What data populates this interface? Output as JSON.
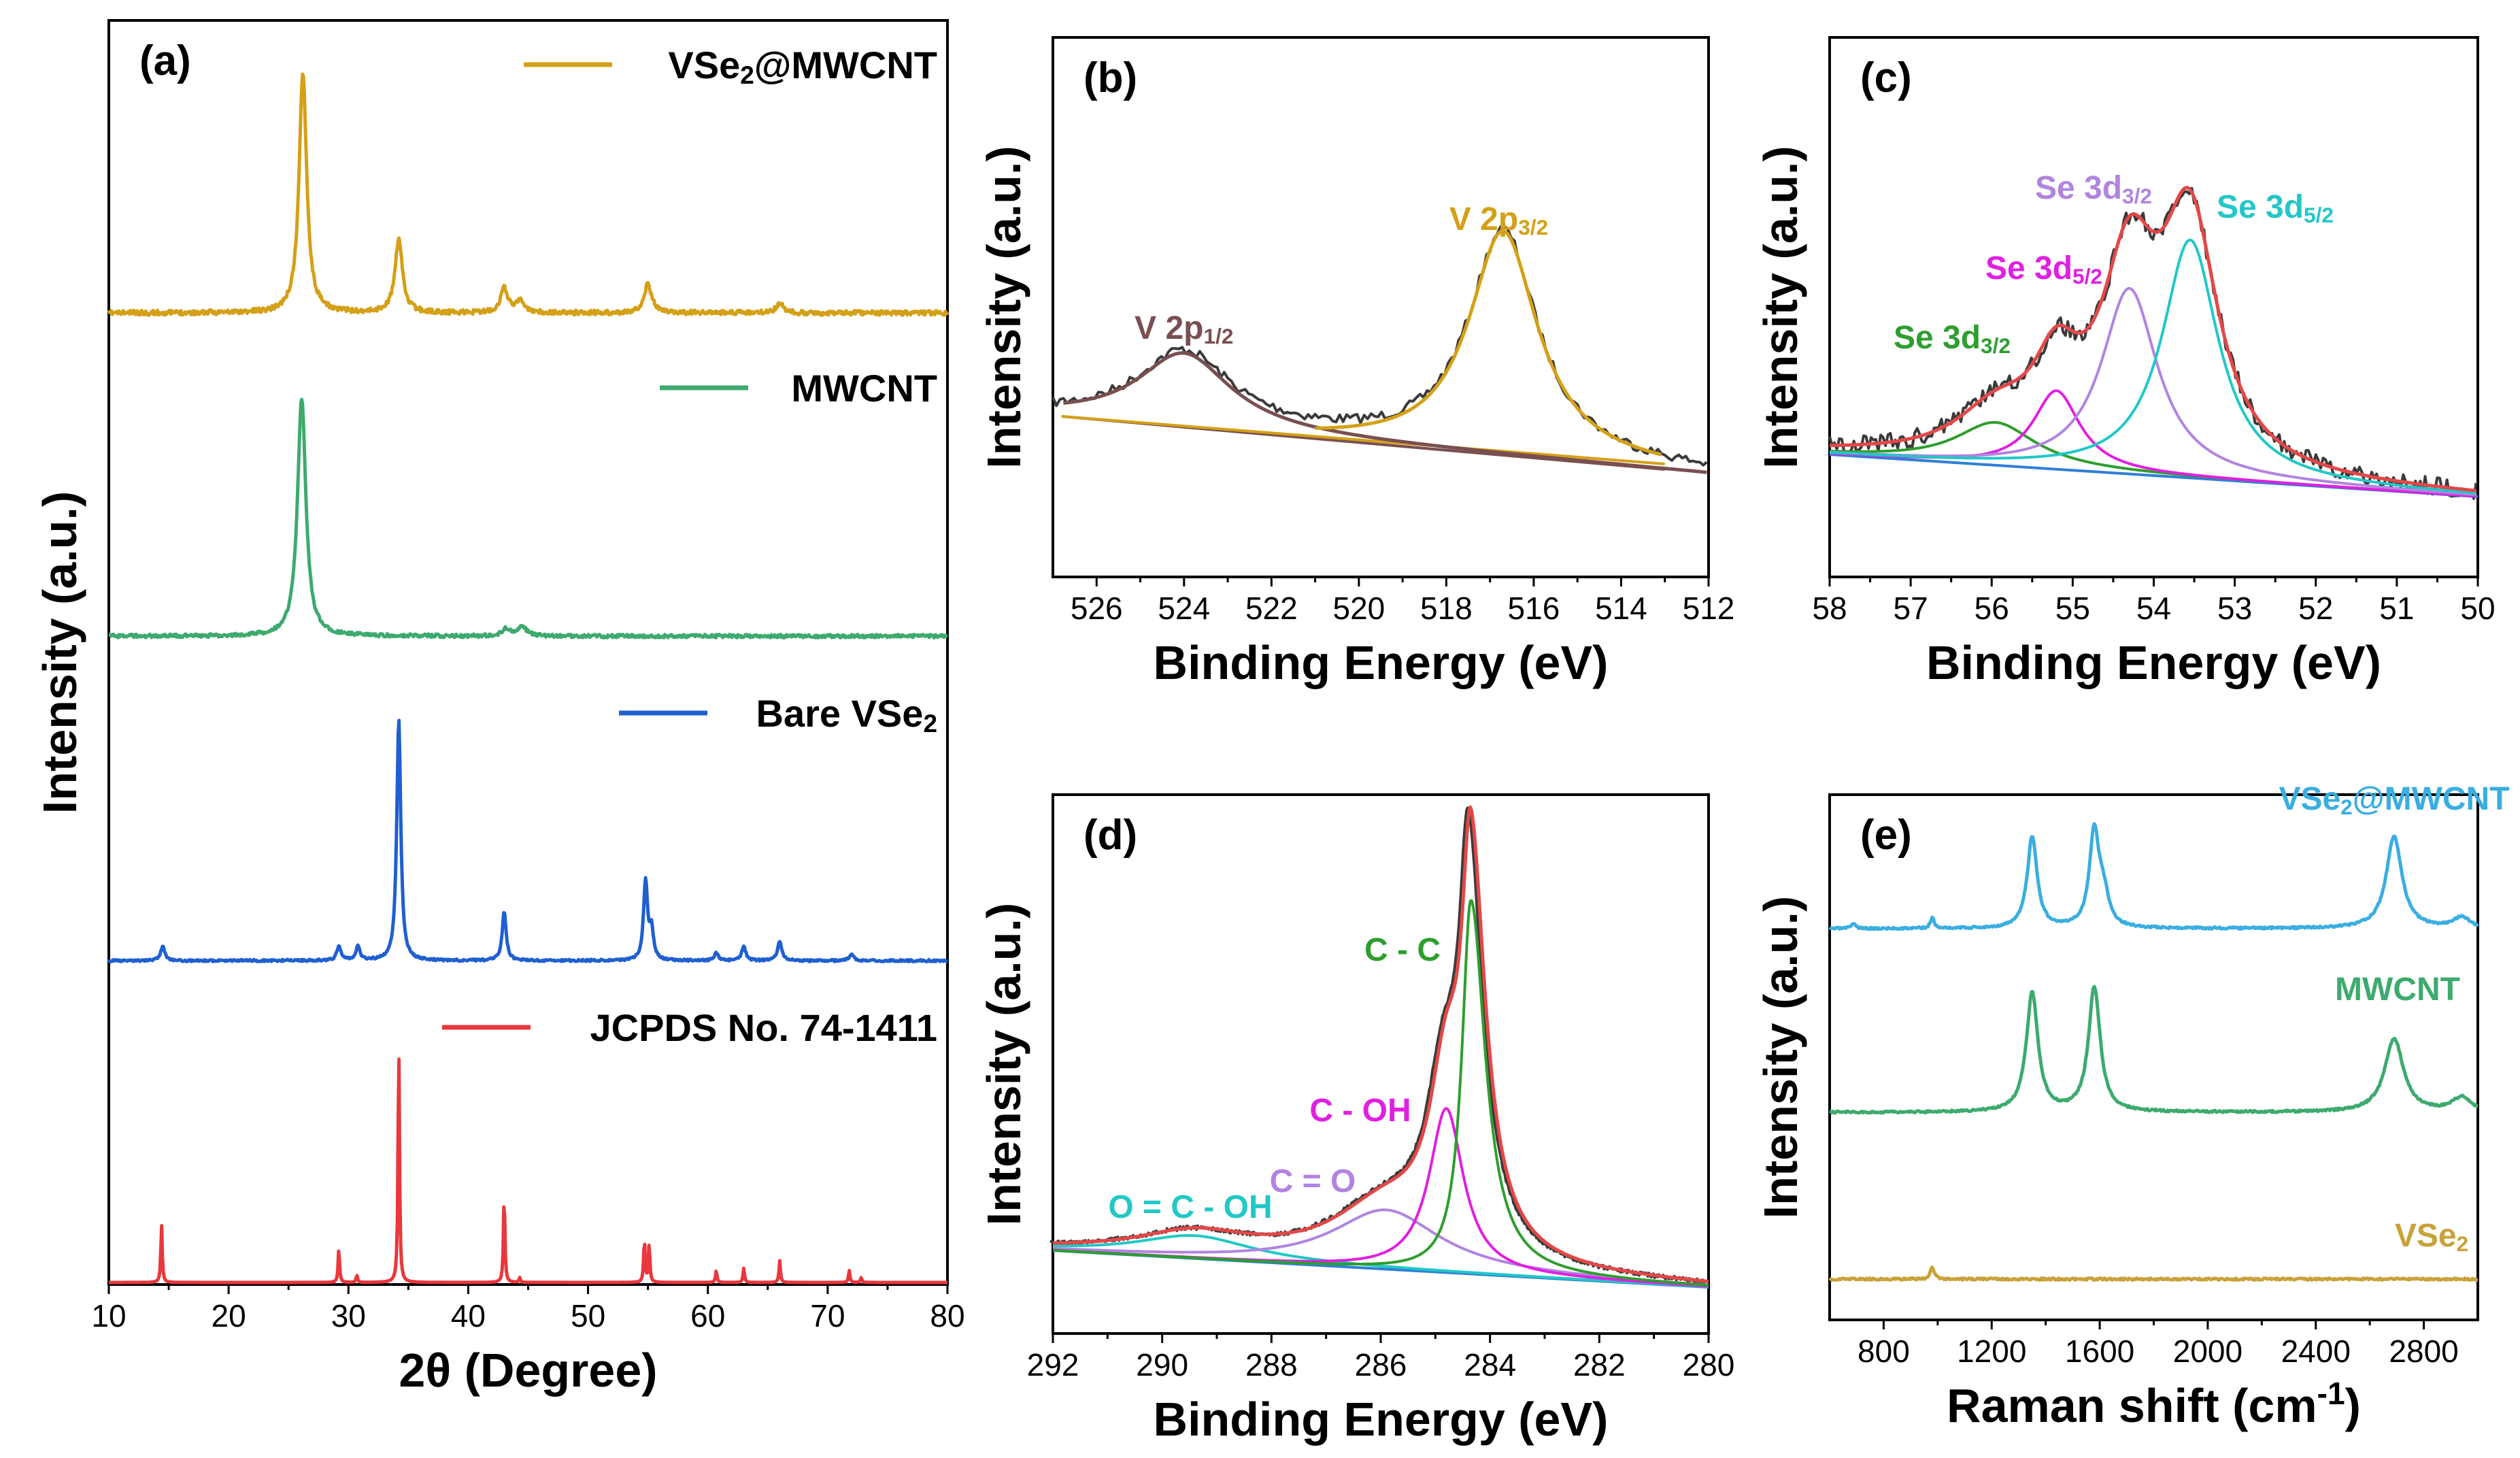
{
  "colors": {
    "gold": "#D4A017",
    "green": "#3DAA6E",
    "blue": "#1F5FD0",
    "red": "#E8383D",
    "gray": "#3a3a3a",
    "brown": "#7A4F4F",
    "violet": "#B184E0",
    "magenta": "#E020E0",
    "cyan": "#22C7C7",
    "dkgreen": "#2E9E2E",
    "fit": "#E34848",
    "base": "#2F7FD6",
    "sky": "#3AAEE0",
    "mwgreen": "#3DAA6E",
    "olive": "#C8A23A"
  },
  "chart_data": [
    {
      "id": "a",
      "type": "line",
      "panel_label": "(a)",
      "title": "",
      "xlabel": "2θ (Degree)",
      "ylabel": "Intensity (a.u.)",
      "xlim": [
        10,
        80
      ],
      "xticks": [
        "10",
        "20",
        "30",
        "40",
        "50",
        "60",
        "70",
        "80"
      ],
      "series": [
        {
          "name": "VSe",
          "sub": "2",
          "suffix": "@MWCNT",
          "color": "#D4A017",
          "peaks": [
            [
              26.2,
              100
            ],
            [
              34.2,
              30
            ],
            [
              43.0,
              10
            ],
            [
              55.0,
              12
            ],
            [
              44.3,
              5
            ],
            [
              66.0,
              4
            ]
          ]
        },
        {
          "name": "MWCNT",
          "sub": "",
          "suffix": "",
          "color": "#3DAA6E",
          "peaks": [
            [
              26.1,
              100
            ],
            [
              44.5,
              4
            ],
            [
              43.2,
              3
            ]
          ]
        },
        {
          "name": "Bare VSe",
          "sub": "2",
          "suffix": "",
          "color": "#1F5FD0",
          "peaks": [
            [
              14.5,
              6
            ],
            [
              29.2,
              6
            ],
            [
              30.8,
              6
            ],
            [
              34.2,
              100
            ],
            [
              43.0,
              20
            ],
            [
              54.8,
              33
            ],
            [
              55.3,
              12
            ],
            [
              63.0,
              6
            ],
            [
              66.0,
              8
            ],
            [
              72.0,
              3
            ],
            [
              60.7,
              3
            ]
          ]
        },
        {
          "name": "JCPDS No. 74-1411",
          "sub": "",
          "suffix": "",
          "color": "#E8383D",
          "peaks": [
            [
              14.4,
              24
            ],
            [
              29.2,
              14
            ],
            [
              30.7,
              3
            ],
            [
              34.2,
              100
            ],
            [
              43.0,
              37
            ],
            [
              54.7,
              18
            ],
            [
              55.1,
              16
            ],
            [
              60.7,
              5
            ],
            [
              63.0,
              6
            ],
            [
              66.0,
              9
            ],
            [
              71.8,
              5
            ],
            [
              72.8,
              2
            ],
            [
              44.3,
              2
            ]
          ]
        }
      ]
    },
    {
      "id": "b",
      "type": "line",
      "panel_label": "(b)",
      "xlabel": "Binding Energy (eV)",
      "ylabel": "Intensity (a.u.)",
      "xlim": [
        527,
        512
      ],
      "xticks": [
        "526",
        "524",
        "522",
        "520",
        "518",
        "516",
        "514",
        "512"
      ],
      "components": [
        {
          "name": "V 2p",
          "sub": "1/2",
          "center": 524.0,
          "height": 0.33,
          "color": "#7A4F4F"
        },
        {
          "name": "V 2p",
          "sub": "3/2",
          "center": 516.7,
          "height": 1.0,
          "color": "#D4A017"
        }
      ]
    },
    {
      "id": "c",
      "type": "line",
      "panel_label": "(c)",
      "xlabel": "Binding Energy (eV)",
      "ylabel": "Intensity (a.u.)",
      "xlim": [
        58,
        50
      ],
      "xticks": [
        "58",
        "57",
        "56",
        "55",
        "54",
        "53",
        "52",
        "51",
        "50"
      ],
      "components": [
        {
          "name": "Se 3d",
          "sub": "3/2",
          "center": 55.95,
          "height": 0.18,
          "color": "#2E9E2E"
        },
        {
          "name": "Se 3d",
          "sub": "5/2",
          "center": 55.2,
          "height": 0.33,
          "color": "#E020E0"
        },
        {
          "name": "Se 3d",
          "sub": "3/2",
          "center": 54.3,
          "height": 0.78,
          "color": "#B184E0"
        },
        {
          "name": "Se 3d",
          "sub": "5/2",
          "center": 53.55,
          "height": 1.0,
          "color": "#22C7C7"
        }
      ]
    },
    {
      "id": "d",
      "type": "line",
      "panel_label": "(d)",
      "xlabel": "Binding Energy (eV)",
      "ylabel": "Intensity (a.u.)",
      "xlim": [
        292,
        280
      ],
      "xticks": [
        "292",
        "290",
        "288",
        "286",
        "284",
        "282",
        "280"
      ],
      "components": [
        {
          "name": "O = C - OH",
          "center": 289.4,
          "height": 0.05,
          "color": "#22C7C7"
        },
        {
          "name": "C = O",
          "center": 285.9,
          "height": 0.13,
          "color": "#B184E0"
        },
        {
          "name": "C - OH",
          "center": 284.8,
          "height": 0.36,
          "color": "#E020E0"
        },
        {
          "name": "C - C",
          "center": 284.35,
          "height": 0.82,
          "color": "#2E9E2E"
        }
      ]
    },
    {
      "id": "e",
      "type": "line",
      "panel_label": "(e)",
      "xlabel": "Raman shift (cm",
      "xlabel_sup": "-1",
      "xlabel_end": ")",
      "ylabel": "Intensity (a.u.)",
      "xlim": [
        600,
        3000
      ],
      "xticks": [
        "800",
        "1200",
        "1600",
        "2000",
        "2400",
        "2800"
      ],
      "series": [
        {
          "name": "VSe",
          "sub": "2",
          "suffix": "@MWCNT",
          "color": "#3AAEE0",
          "peaks": [
            [
              1350,
              100
            ],
            [
              1580,
              105
            ],
            [
              1615,
              30
            ],
            [
              2690,
              100
            ],
            [
              980,
              12
            ],
            [
              690,
              6
            ],
            [
              2940,
              12
            ]
          ]
        },
        {
          "name": "MWCNT",
          "sub": "",
          "suffix": "",
          "color": "#3DAA6E",
          "peaks": [
            [
              1350,
              100
            ],
            [
              1580,
              105
            ],
            [
              2690,
              62
            ],
            [
              2940,
              12
            ]
          ]
        },
        {
          "name": "VSe",
          "sub": "2",
          "suffix": "",
          "color": "#C8A23A",
          "peaks": [
            [
              980,
              10
            ]
          ]
        }
      ]
    }
  ]
}
